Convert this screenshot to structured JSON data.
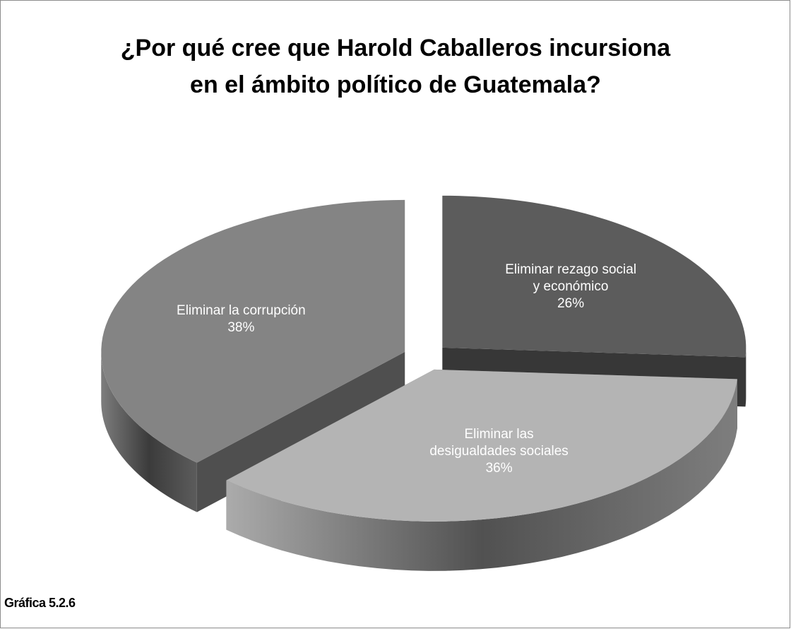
{
  "chart_data": {
    "type": "pie",
    "title": "¿Por qué cree que Harold Caballeros incursiona\nen el ámbito político de Guatemala?",
    "categories": [
      "Eliminar rezago social y económico",
      "Eliminar las desigualdades sociales",
      "Eliminar la corrupción"
    ],
    "values": [
      26,
      36,
      38
    ],
    "value_labels": [
      "26%",
      "36%",
      "38%"
    ],
    "colors": [
      "#5c5c5c",
      "#b4b4b4",
      "#848484"
    ],
    "exploded": true,
    "three_d": true
  },
  "caption": "Gráfica 5.2.6"
}
